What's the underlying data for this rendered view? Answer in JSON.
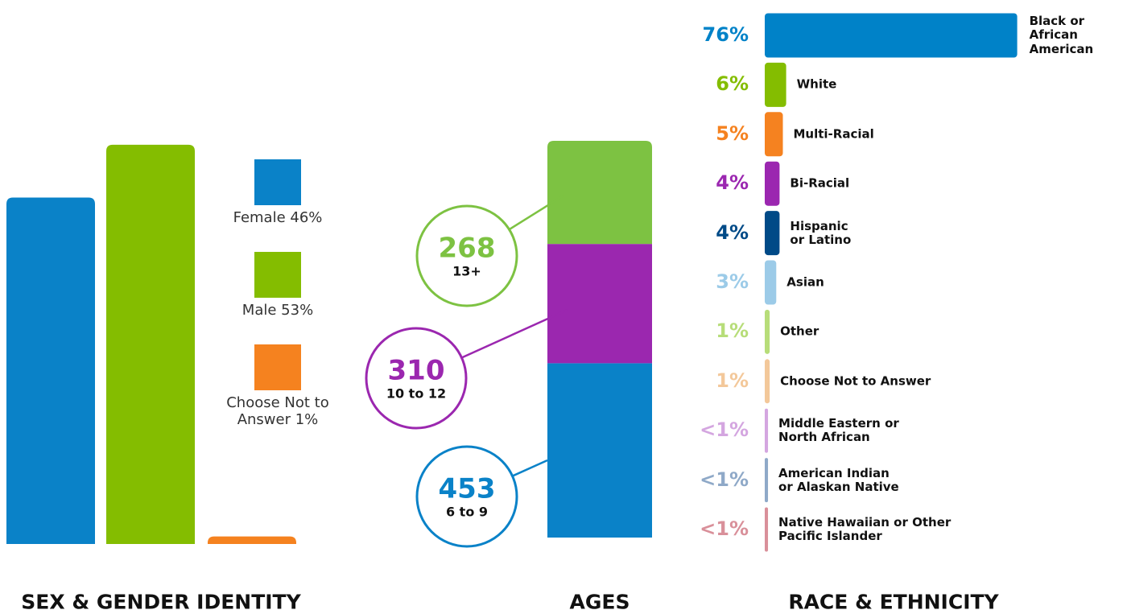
{
  "chart_data": [
    {
      "type": "bar",
      "title": "SEX & GENDER IDENTITY",
      "categories": [
        "Female",
        "Male",
        "Choose Not to Answer"
      ],
      "values": [
        46,
        53,
        1
      ],
      "value_labels": [
        "46%",
        "53%",
        "1%"
      ],
      "colors": [
        "#0a82c8",
        "#84bd00",
        "#f5821f"
      ]
    },
    {
      "type": "stacked_bar",
      "title": "AGES",
      "categories": [
        "6 to 9",
        "10 to 12",
        "13+"
      ],
      "values": [
        453,
        310,
        268
      ],
      "colors": [
        "#0a82c8",
        "#9b27af",
        "#7dc242"
      ]
    },
    {
      "type": "hbar",
      "title": "RACE & ETHNICITY",
      "categories": [
        "Black or African American",
        "White",
        "Multi-Racial",
        "Bi-Racial",
        "Hispanic or Latino",
        "Asian",
        "Other",
        "Choose Not to Answer",
        "Middle Eastern or North African",
        "American Indian or Alaskan Native",
        "Native Hawaiian or Other Pacific Islander"
      ],
      "values": [
        76,
        6,
        5,
        4,
        4,
        3,
        1,
        1,
        0.5,
        0.5,
        0.5
      ],
      "value_labels": [
        "76%",
        "6%",
        "5%",
        "4%",
        "4%",
        "3%",
        "1%",
        "1%",
        "<1%",
        "<1%",
        "<1%"
      ],
      "colors": [
        "#0082c8",
        "#84bd00",
        "#f58220",
        "#9b27b0",
        "#004a87",
        "#9ccbe8",
        "#b7dd79",
        "#f3c89a",
        "#d4a6e0",
        "#8fa9c8",
        "#d9909a"
      ]
    }
  ]
}
